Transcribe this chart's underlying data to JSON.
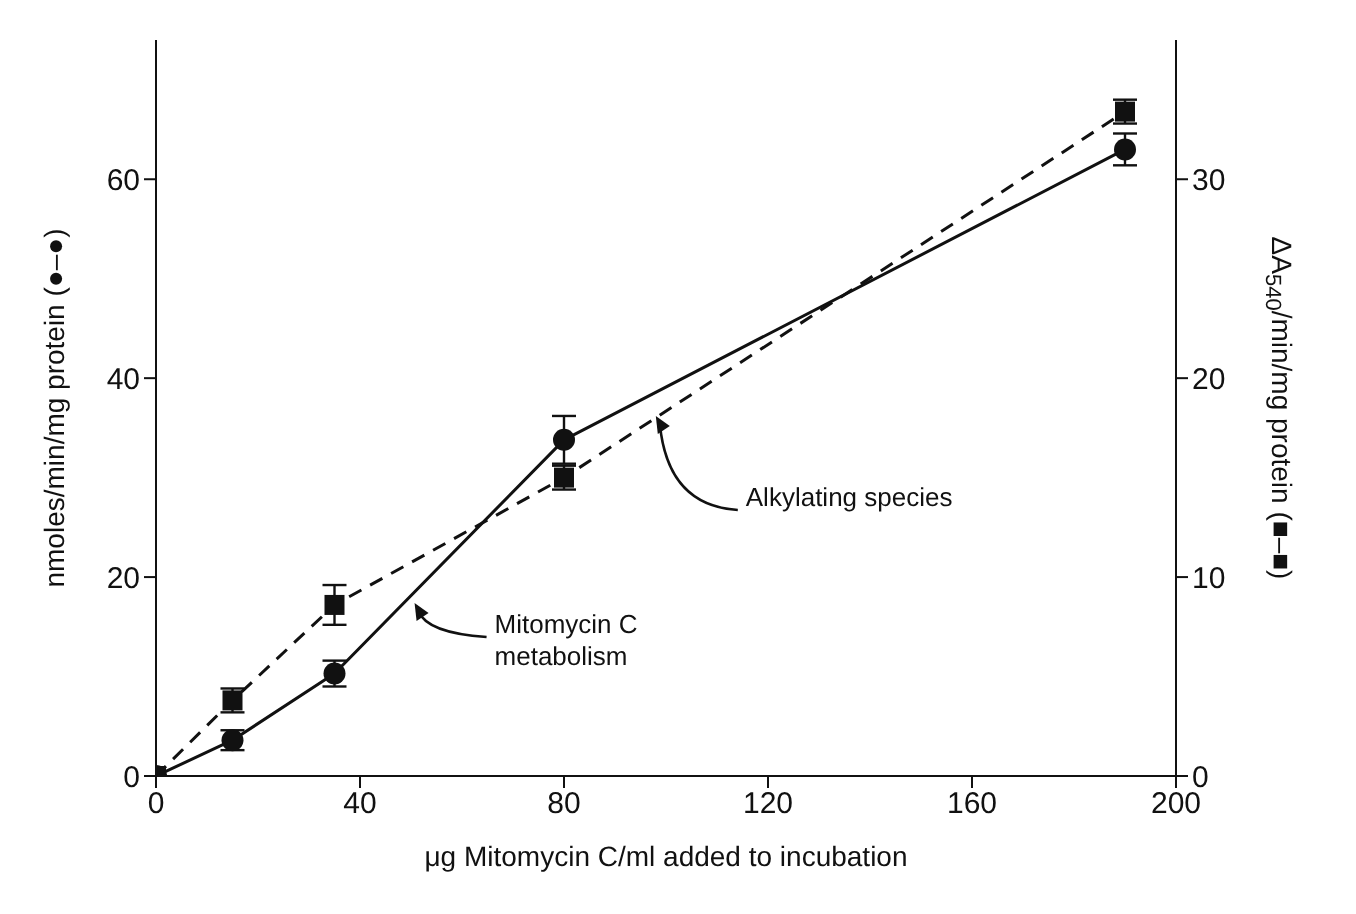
{
  "chart_data": {
    "type": "line",
    "xlabel": "μg Mitomycin C/ml added to incubation",
    "ylabel": "nmoles/min/mg protein (●–●)",
    "y2label": "ΔA$_{540}$/min/mg protein (■–■)",
    "x": [
      0,
      15,
      35,
      80,
      190
    ],
    "series": [
      {
        "color": "#111111",
        "values": [
          0,
          3.6,
          10.3,
          33.8,
          63.0
        ],
        "errors": [
          null,
          1.0,
          1.3,
          2.4,
          1.6
        ],
        "marker": "circle",
        "line_style": "solid"
      },
      {
        "color": "#111111",
        "values": [
          0,
          3.8,
          8.6,
          15.0,
          33.4
        ],
        "errors": [
          null,
          0.6,
          1.0,
          0.6,
          0.6
        ],
        "marker": "square",
        "line_style": "dashed",
        "axis": "y2"
      }
    ],
    "xlim": [
      0,
      200
    ],
    "xticks": [
      0,
      40,
      80,
      120,
      160,
      200
    ],
    "ylim": [
      0,
      74
    ],
    "yticks": [
      0,
      20,
      40,
      60
    ],
    "y2lim": [
      0,
      37
    ],
    "y2ticks": [
      0,
      10,
      20,
      30
    ],
    "annotations": [
      {
        "text": "Mitomycin C metabolism",
        "x": 50.7,
        "y": 17.4
      },
      {
        "text": "Alkylating species",
        "x": 98,
        "y": 36.2
      }
    ]
  }
}
